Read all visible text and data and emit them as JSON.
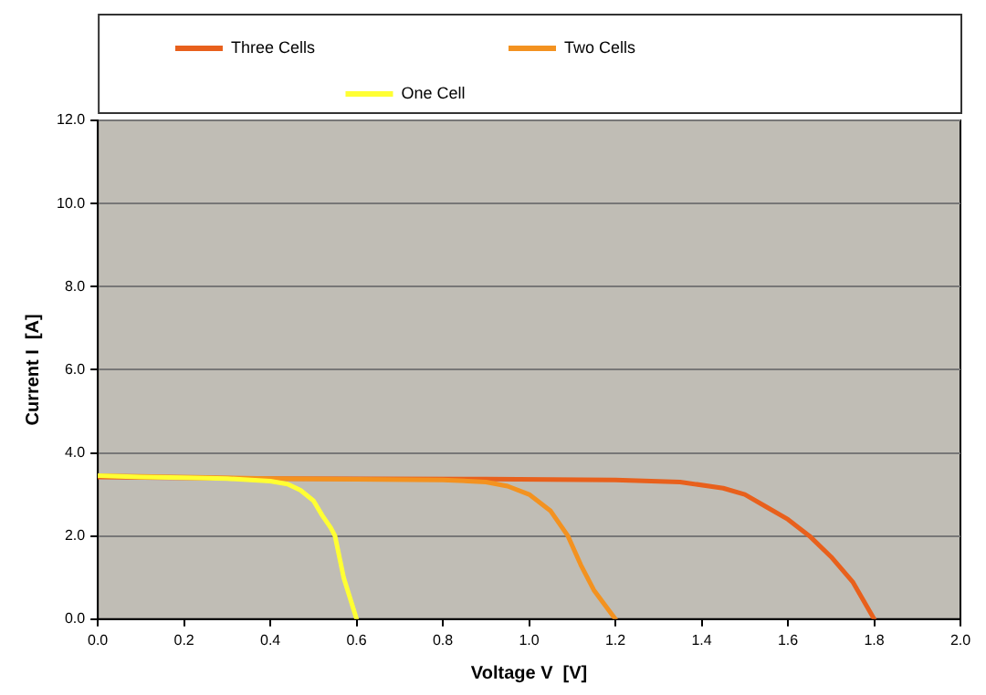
{
  "chart_data": {
    "type": "line",
    "xlabel": "Voltage V  [V]",
    "ylabel": "Current I  [A]",
    "xlim": [
      0,
      2
    ],
    "ylim": [
      0,
      12
    ],
    "xticks": [
      {
        "value": 0,
        "label": "0.0"
      },
      {
        "value": 0.2,
        "label": "0.2"
      },
      {
        "value": 0.4,
        "label": "0.4"
      },
      {
        "value": 0.6,
        "label": "0.6"
      },
      {
        "value": 0.8,
        "label": "0.8"
      },
      {
        "value": 1,
        "label": "1.0"
      },
      {
        "value": 1.2,
        "label": "1.2"
      },
      {
        "value": 1.4,
        "label": "1.4"
      },
      {
        "value": 1.6,
        "label": "1.6"
      },
      {
        "value": 1.8,
        "label": "1.8"
      },
      {
        "value": 2,
        "label": "2.0"
      }
    ],
    "yticks": [
      {
        "value": 0,
        "label": "0.0"
      },
      {
        "value": 2,
        "label": "2.0"
      },
      {
        "value": 4,
        "label": "4.0"
      },
      {
        "value": 6,
        "label": "6.0"
      },
      {
        "value": 8,
        "label": "8.0"
      },
      {
        "value": 10,
        "label": "10.0"
      },
      {
        "value": 12,
        "label": "12.0"
      }
    ],
    "grid": "y",
    "legend": "top",
    "marker": "none",
    "line_style": "solid",
    "series": [
      {
        "name": "Three Cells",
        "color": "#e8601c",
        "x": [
          0,
          0.4,
          0.9,
          1.2,
          1.35,
          1.45,
          1.5,
          1.55,
          1.6,
          1.65,
          1.7,
          1.75,
          1.8
        ],
        "values": [
          3.42,
          3.38,
          3.37,
          3.35,
          3.3,
          3.15,
          3.0,
          2.7,
          2.4,
          2.0,
          1.5,
          0.9,
          0
        ]
      },
      {
        "name": "Two Cells",
        "color": "#f39220",
        "x": [
          0,
          0.4,
          0.8,
          0.9,
          0.95,
          1.0,
          1.05,
          1.09,
          1.12,
          1.15,
          1.2
        ],
        "values": [
          3.45,
          3.38,
          3.35,
          3.3,
          3.2,
          3.0,
          2.6,
          2.0,
          1.3,
          0.7,
          0
        ]
      },
      {
        "name": "One Cell",
        "color": "#ffff33",
        "x": [
          0,
          0.1,
          0.2,
          0.3,
          0.4,
          0.44,
          0.47,
          0.5,
          0.52,
          0.54,
          0.55,
          0.57,
          0.6
        ],
        "values": [
          3.45,
          3.42,
          3.4,
          3.38,
          3.32,
          3.25,
          3.1,
          2.85,
          2.5,
          2.2,
          2.0,
          1.0,
          0
        ]
      }
    ]
  }
}
